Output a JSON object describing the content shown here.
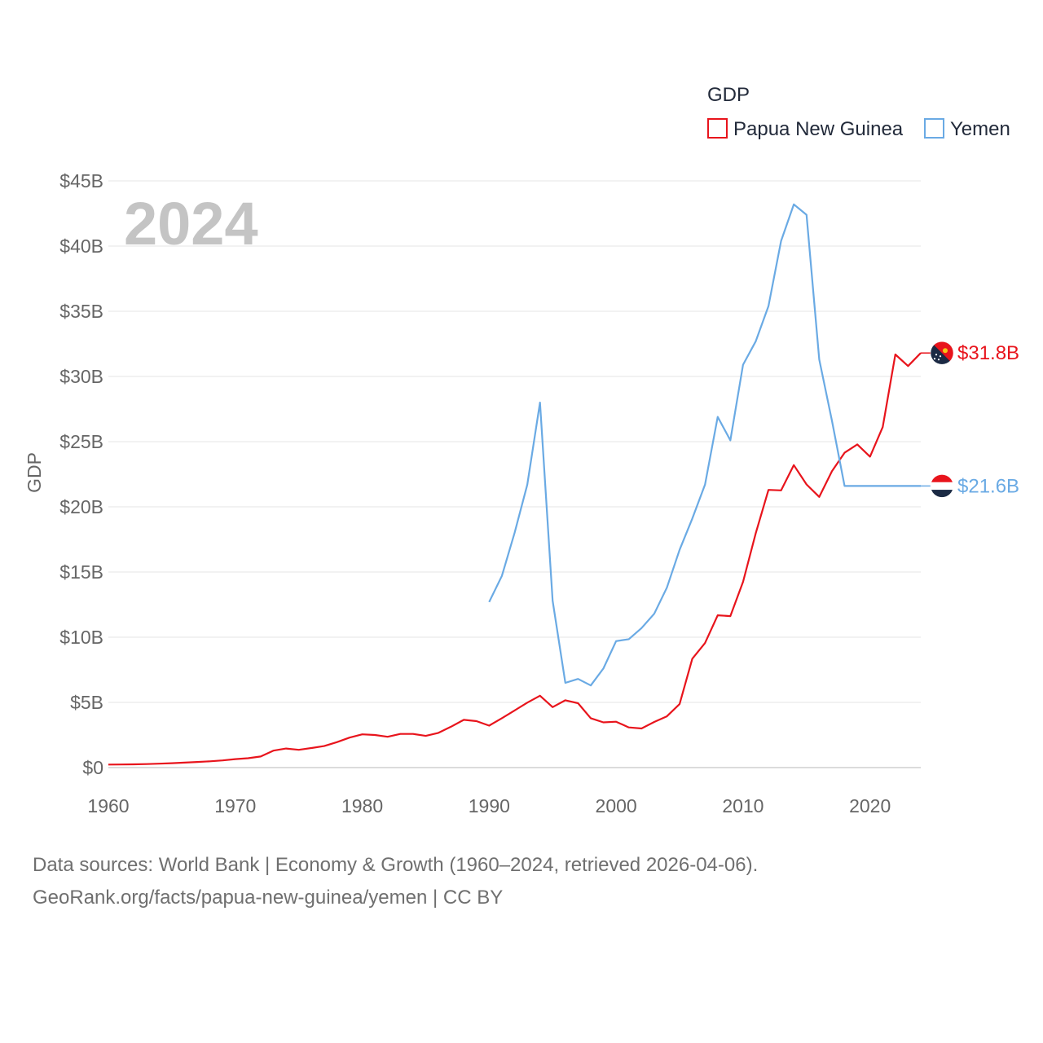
{
  "chart_data": {
    "type": "line",
    "legend_title": "GDP",
    "ylabel": "GDP",
    "year_label": "2024",
    "ylim": [
      0,
      45
    ],
    "xlim": [
      1960,
      2024
    ],
    "y_ticks": [
      {
        "value": 0,
        "label": "$0"
      },
      {
        "value": 5,
        "label": "$5B"
      },
      {
        "value": 10,
        "label": "$10B"
      },
      {
        "value": 15,
        "label": "$15B"
      },
      {
        "value": 20,
        "label": "$20B"
      },
      {
        "value": 25,
        "label": "$25B"
      },
      {
        "value": 30,
        "label": "$30B"
      },
      {
        "value": 35,
        "label": "$35B"
      },
      {
        "value": 40,
        "label": "$40B"
      },
      {
        "value": 45,
        "label": "$45B"
      }
    ],
    "x_ticks": [
      {
        "value": 1960,
        "label": "1960"
      },
      {
        "value": 1970,
        "label": "1970"
      },
      {
        "value": 1980,
        "label": "1980"
      },
      {
        "value": 1990,
        "label": "1990"
      },
      {
        "value": 2000,
        "label": "2000"
      },
      {
        "value": 2010,
        "label": "2010"
      },
      {
        "value": 2020,
        "label": "2020"
      }
    ],
    "series": [
      {
        "name": "Papua New Guinea",
        "color": "#e8141c",
        "end_label": "$31.8B",
        "end_value": 31.8,
        "end_label_year": 2024,
        "flag_colors": [
          "#e8141c",
          "#1b2a44"
        ],
        "x": [
          1960,
          1961,
          1962,
          1963,
          1964,
          1965,
          1966,
          1967,
          1968,
          1969,
          1970,
          1971,
          1972,
          1973,
          1974,
          1975,
          1976,
          1977,
          1978,
          1979,
          1980,
          1981,
          1982,
          1983,
          1984,
          1985,
          1986,
          1987,
          1988,
          1989,
          1990,
          1991,
          1992,
          1993,
          1994,
          1995,
          1996,
          1997,
          1998,
          1999,
          2000,
          2001,
          2002,
          2003,
          2004,
          2005,
          2006,
          2007,
          2008,
          2009,
          2010,
          2011,
          2012,
          2013,
          2014,
          2015,
          2016,
          2017,
          2018,
          2019,
          2020,
          2021,
          2022,
          2023,
          2024
        ],
        "values": [
          0.23,
          0.24,
          0.25,
          0.27,
          0.3,
          0.34,
          0.38,
          0.43,
          0.48,
          0.55,
          0.65,
          0.72,
          0.85,
          1.3,
          1.46,
          1.36,
          1.5,
          1.65,
          1.95,
          2.3,
          2.55,
          2.5,
          2.36,
          2.58,
          2.58,
          2.43,
          2.66,
          3.14,
          3.66,
          3.56,
          3.22,
          3.79,
          4.38,
          4.98,
          5.51,
          4.64,
          5.16,
          4.94,
          3.79,
          3.47,
          3.52,
          3.08,
          3.0,
          3.5,
          3.93,
          4.87,
          8.35,
          9.55,
          11.68,
          11.62,
          14.25,
          17.98,
          21.3,
          21.26,
          23.2,
          21.72,
          20.76,
          22.73,
          24.15,
          24.79,
          23.85,
          26.12,
          31.69,
          30.8,
          31.8
        ]
      },
      {
        "name": "Yemen",
        "color": "#6aaae4",
        "end_label": "$21.6B",
        "end_value": 21.6,
        "end_label_year": 2024,
        "flag_colors": [
          "#e8141c",
          "#ffffff",
          "#1b2a44"
        ],
        "x": [
          1990,
          1991,
          1992,
          1993,
          1994,
          1995,
          1996,
          1997,
          1998,
          1999,
          2000,
          2001,
          2002,
          2003,
          2004,
          2005,
          2006,
          2007,
          2008,
          2009,
          2010,
          2011,
          2012,
          2013,
          2014,
          2015,
          2016,
          2017,
          2018,
          2024
        ],
        "values": [
          12.7,
          14.7,
          18.0,
          21.7,
          28.0,
          12.8,
          6.5,
          6.8,
          6.3,
          7.6,
          9.7,
          9.85,
          10.7,
          11.8,
          13.8,
          16.7,
          19.1,
          21.7,
          26.9,
          25.1,
          30.9,
          32.7,
          35.4,
          40.4,
          43.2,
          42.4,
          31.3,
          26.6,
          21.6,
          21.6
        ]
      }
    ]
  },
  "footer": {
    "line1": "Data sources: World Bank | Economy & Growth (1960–2024, retrieved 2026-04-06).",
    "line2": "GeoRank.org/facts/papua-new-guinea/yemen | CC BY"
  }
}
